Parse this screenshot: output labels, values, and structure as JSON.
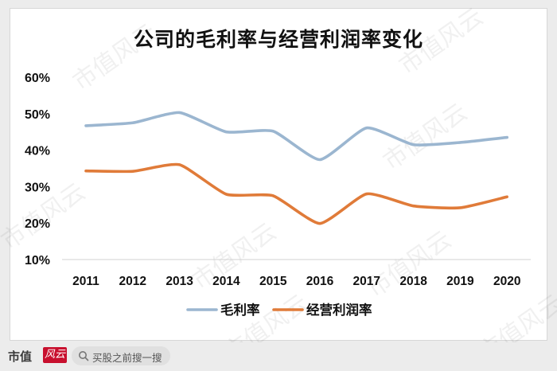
{
  "chart_data": {
    "type": "line",
    "title": "公司的毛利率与经营利润率变化",
    "categories": [
      "2011",
      "2012",
      "2013",
      "2014",
      "2015",
      "2016",
      "2017",
      "2018",
      "2019",
      "2020"
    ],
    "yticks": [
      "10%",
      "20%",
      "30%",
      "40%",
      "50%",
      "60%"
    ],
    "ylim": [
      0.1,
      0.6
    ],
    "grid": false,
    "legend_position": "bottom",
    "series": [
      {
        "name": "毛利率",
        "color": "#9bb6d0",
        "values": [
          0.467,
          0.475,
          0.503,
          0.45,
          0.452,
          0.374,
          0.461,
          0.415,
          0.421,
          0.435
        ]
      },
      {
        "name": "经营利润率",
        "color": "#e07b39",
        "values": [
          0.343,
          0.342,
          0.36,
          0.279,
          0.275,
          0.199,
          0.28,
          0.247,
          0.242,
          0.272
        ]
      }
    ]
  },
  "watermark": "市值风云",
  "footer": {
    "brand": "市值",
    "brand_mark": "风云",
    "search_text": "买股之前搜一搜"
  }
}
